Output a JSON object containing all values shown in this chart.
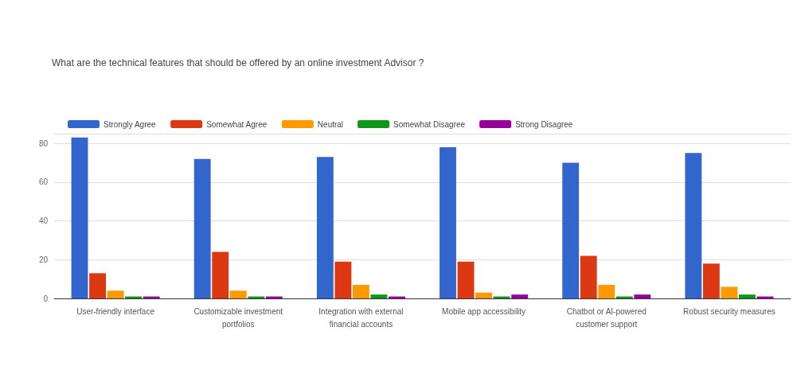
{
  "chart_data": {
    "type": "bar",
    "title": "What are the technical features that should be offered by an online investment Advisor ?",
    "categories": [
      "User-friendly interface",
      "Customizable investment\nportfolios",
      "Integration with external\nfinancial accounts",
      "Mobile app accessibility",
      "Chatbot or AI-powered\ncustomer support",
      "Robust security measures"
    ],
    "series": [
      {
        "name": "Strongly Agree",
        "color": "#3366cc",
        "values": [
          83,
          72,
          73,
          78,
          70,
          75
        ]
      },
      {
        "name": "Somewhat Agree",
        "color": "#dc3912",
        "values": [
          13,
          24,
          19,
          19,
          22,
          18
        ]
      },
      {
        "name": "Neutral",
        "color": "#ff9900",
        "values": [
          4,
          4,
          7,
          3,
          7,
          6
        ]
      },
      {
        "name": "Somewhat Disagree",
        "color": "#109618",
        "values": [
          1,
          1,
          2,
          1,
          1,
          2
        ]
      },
      {
        "name": "Strong Disagree",
        "color": "#990099",
        "values": [
          1,
          1,
          1,
          2,
          2,
          1
        ]
      }
    ],
    "ylim": [
      0,
      85
    ],
    "yticks": [
      0,
      20,
      40,
      60,
      80,
      {
        "value": 85,
        "label": null
      }
    ],
    "grid": "y",
    "legend": "top left"
  }
}
